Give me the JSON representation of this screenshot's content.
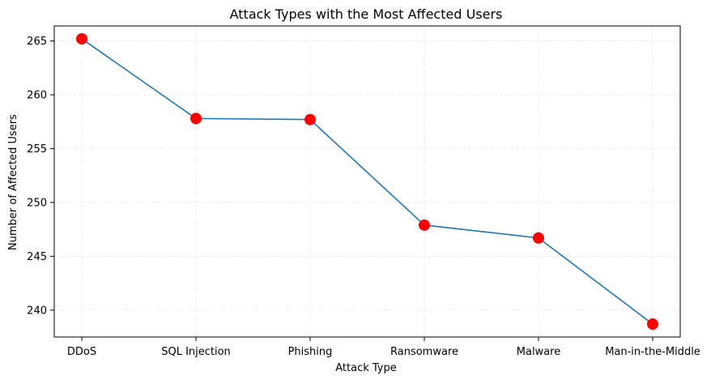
{
  "chart_data": {
    "type": "line",
    "title": "Attack Types with the Most Affected Users",
    "xlabel": "Attack Type",
    "ylabel": "Number of Affected Users",
    "categories": [
      "DDoS",
      "SQL Injection",
      "Phishing",
      "Ransomware",
      "Malware",
      "Man-in-the-Middle"
    ],
    "values": [
      265.2,
      257.8,
      257.7,
      247.9,
      246.7,
      238.7
    ],
    "ylim": [
      237.5,
      266.4
    ],
    "yticks": [
      240,
      245,
      250,
      255,
      260,
      265
    ],
    "grid": true,
    "line_color": "#1f77b4",
    "marker_color": "#ff0000"
  }
}
